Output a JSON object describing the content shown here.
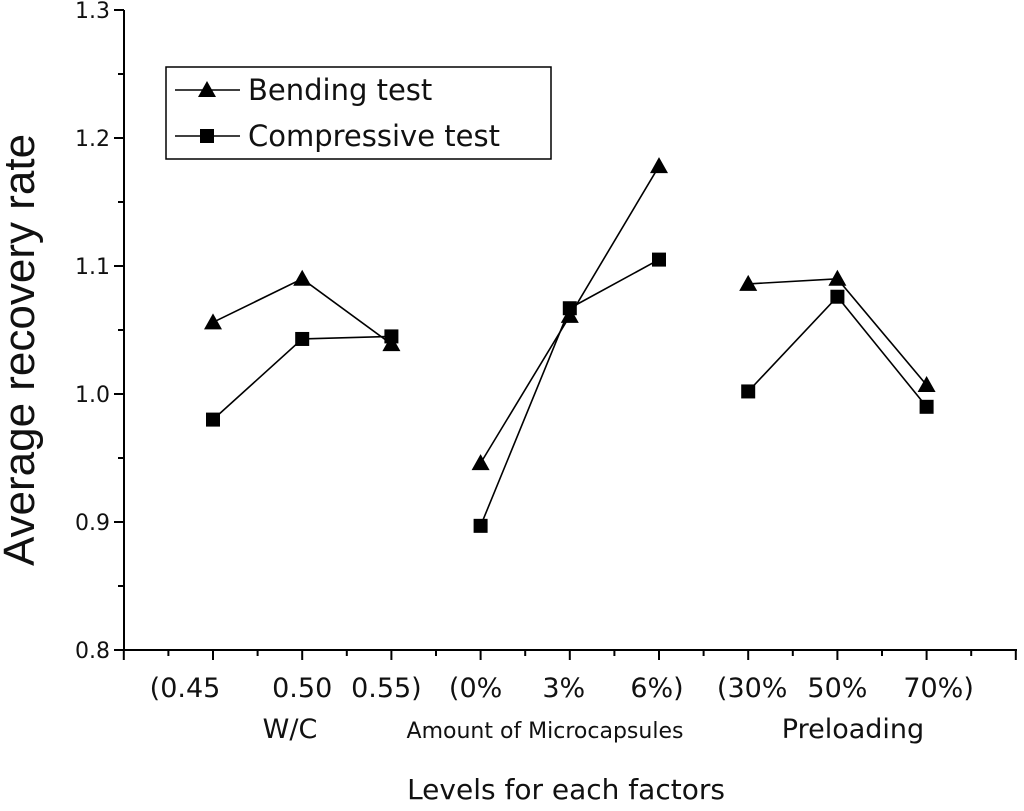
{
  "chart_data": {
    "type": "line",
    "title": "",
    "xlabel": "Levels for each factors",
    "ylabel": "Average recovery rate",
    "ylim": [
      0.8,
      1.3
    ],
    "yticks": [
      "0.8",
      "0.9",
      "1.0",
      "1.1",
      "1.2",
      "1.3"
    ],
    "grid": false,
    "legend_position": "top-left",
    "categories": [
      "(0.45",
      "0.50",
      "0.55)",
      "(0%",
      "3%",
      "6%)",
      "(30%",
      "50%",
      "70%)"
    ],
    "groups": [
      {
        "name": "W/C",
        "categories": [
          "(0.45",
          "0.50",
          "0.55)"
        ]
      },
      {
        "name": "Amount of Microcapsules",
        "categories": [
          "(0%",
          "3%",
          "6%)"
        ]
      },
      {
        "name": "Preloading",
        "categories": [
          "(30%",
          "50%",
          "70%)"
        ]
      }
    ],
    "series": [
      {
        "name": "Bending test",
        "marker": "triangle",
        "values": [
          1.056,
          1.09,
          1.039,
          0.946,
          1.061,
          1.178,
          1.086,
          1.09,
          1.007
        ]
      },
      {
        "name": "Compressive test",
        "marker": "square",
        "values": [
          0.98,
          1.043,
          1.045,
          0.897,
          1.067,
          1.105,
          1.002,
          1.076,
          0.99
        ]
      }
    ]
  }
}
